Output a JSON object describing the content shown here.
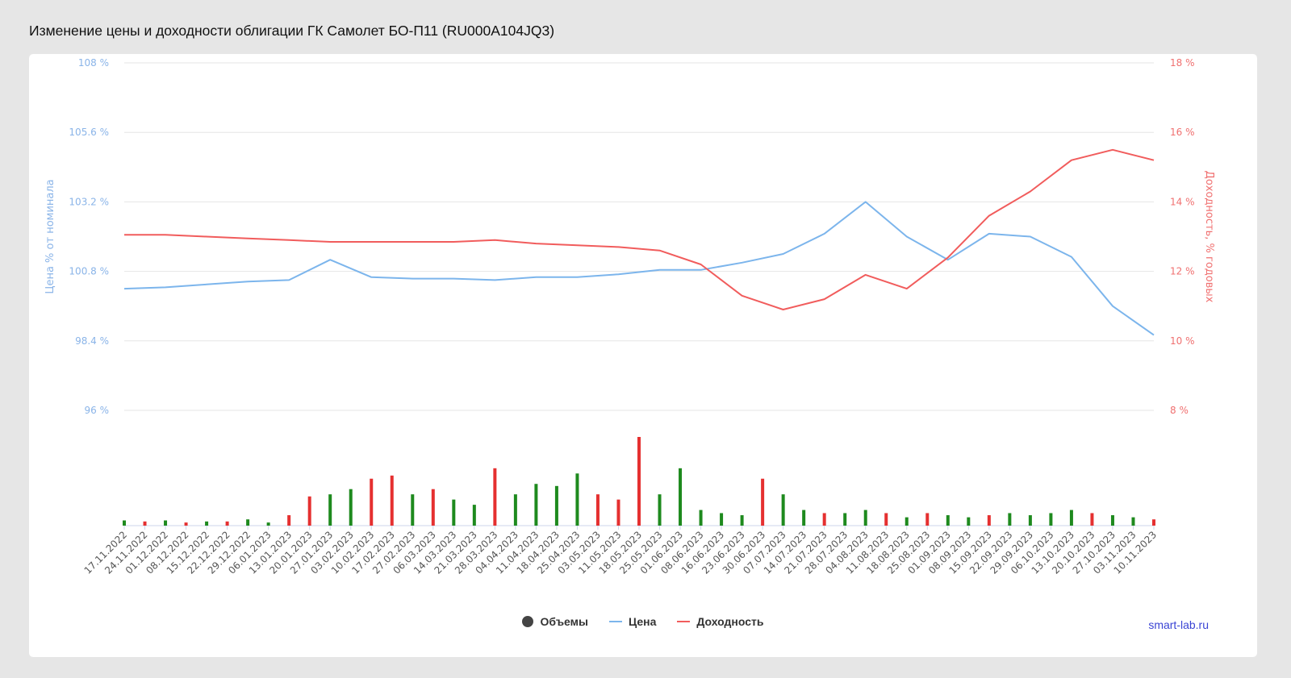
{
  "title": "Изменение цены и доходности облигации ГК Самолет БО-П11 (RU000A104JQ3)",
  "source": "smart-lab.ru",
  "colors": {
    "price": "#7cb5ec",
    "yield": "#f15c5c",
    "vol_up": "#1e8a1e",
    "vol_down": "#e53030",
    "left_axis": "#8ab4e8",
    "right_axis": "#f07070"
  },
  "legend": [
    {
      "label": "Объемы",
      "symbol": "dot"
    },
    {
      "label": "Цена",
      "symbol": "line-price"
    },
    {
      "label": "Доходность",
      "symbol": "line-yield"
    }
  ],
  "chart_data": {
    "type": "line",
    "y_left": {
      "label": "Цена % от номинала",
      "min": 96,
      "max": 108,
      "ticks": [
        "96 %",
        "98.4 %",
        "100.8 %",
        "103.2 %",
        "105.6 %",
        "108 %"
      ]
    },
    "y_right": {
      "label": "Доходность, % годовых",
      "min": 8,
      "max": 18,
      "ticks": [
        "8 %",
        "10 %",
        "12 %",
        "14 %",
        "16 %",
        "18 %"
      ]
    },
    "x_labels": [
      "17.11.2022",
      "24.11.2022",
      "01.12.2022",
      "08.12.2022",
      "15.12.2022",
      "22.12.2022",
      "29.12.2022",
      "06.01.2023",
      "13.01.2023",
      "20.01.2023",
      "27.01.2023",
      "03.02.2023",
      "10.02.2023",
      "17.02.2023",
      "27.02.2023",
      "06.03.2023",
      "14.03.2023",
      "21.03.2023",
      "28.03.2023",
      "04.04.2023",
      "11.04.2023",
      "18.04.2023",
      "25.04.2023",
      "03.05.2023",
      "11.05.2023",
      "18.05.2023",
      "25.05.2023",
      "01.06.2023",
      "08.06.2023",
      "16.06.2023",
      "23.06.2023",
      "30.06.2023",
      "07.07.2023",
      "14.07.2023",
      "21.07.2023",
      "28.07.2023",
      "04.08.2023",
      "11.08.2023",
      "18.08.2023",
      "25.08.2023",
      "01.09.2023",
      "08.09.2023",
      "15.09.2023",
      "22.09.2023",
      "29.09.2023",
      "06.10.2023",
      "13.10.2023",
      "20.10.2023",
      "27.10.2023",
      "03.11.2023",
      "10.11.2023"
    ],
    "series": [
      {
        "name": "Цена",
        "x_index": [
          0,
          2,
          4,
          6,
          8,
          10,
          12,
          14,
          16,
          18,
          20,
          22,
          24,
          26,
          28,
          30,
          32,
          34,
          36,
          38,
          40,
          42,
          44,
          46,
          48,
          50
        ],
        "values": [
          100.2,
          100.25,
          100.35,
          100.45,
          100.5,
          101.2,
          100.6,
          100.55,
          100.55,
          100.5,
          100.6,
          100.6,
          100.7,
          100.85,
          100.85,
          101.1,
          101.4,
          102.1,
          103.2,
          102.0,
          101.2,
          102.1,
          102.0,
          101.3,
          99.6,
          98.6
        ]
      },
      {
        "name": "Доходность",
        "x_index": [
          0,
          2,
          4,
          6,
          8,
          10,
          12,
          14,
          16,
          18,
          20,
          22,
          24,
          26,
          28,
          30,
          32,
          34,
          36,
          38,
          40,
          42,
          44,
          46,
          48,
          50
        ],
        "values": [
          13.05,
          13.05,
          13.0,
          12.95,
          12.9,
          12.85,
          12.85,
          12.85,
          12.85,
          12.9,
          12.8,
          12.75,
          12.7,
          12.6,
          12.2,
          11.3,
          10.9,
          11.2,
          11.9,
          11.5,
          12.4,
          13.6,
          14.3,
          15.2,
          15.5,
          15.2
        ]
      }
    ],
    "volumes": {
      "description_note_omitted": "",
      "values": [
        0.05,
        0.04,
        0.05,
        0.03,
        0.04,
        0.04,
        0.06,
        0.03,
        0.1,
        0.28,
        0.3,
        0.35,
        0.45,
        0.48,
        0.3,
        0.35,
        0.25,
        0.2,
        0.55,
        0.3,
        0.4,
        0.38,
        0.5,
        0.3,
        0.25,
        0.85,
        0.3,
        0.55,
        0.15,
        0.12,
        0.1,
        0.45,
        0.3,
        0.15,
        0.12,
        0.12,
        0.15,
        0.12,
        0.08,
        0.12,
        0.1,
        0.08,
        0.1,
        0.12,
        0.1,
        0.12,
        0.15,
        0.12,
        0.1,
        0.08,
        0.06
      ],
      "up": [
        1,
        0,
        1,
        0,
        1,
        0,
        1,
        1,
        0,
        0,
        1,
        1,
        0,
        0,
        1,
        0,
        1,
        1,
        0,
        1,
        1,
        1,
        1,
        0,
        0,
        0,
        1,
        1,
        1,
        1,
        1,
        0,
        1,
        1,
        0,
        1,
        1,
        0,
        1,
        0,
        1,
        1,
        0,
        1,
        1,
        1,
        1,
        0,
        1,
        1,
        0
      ]
    }
  }
}
